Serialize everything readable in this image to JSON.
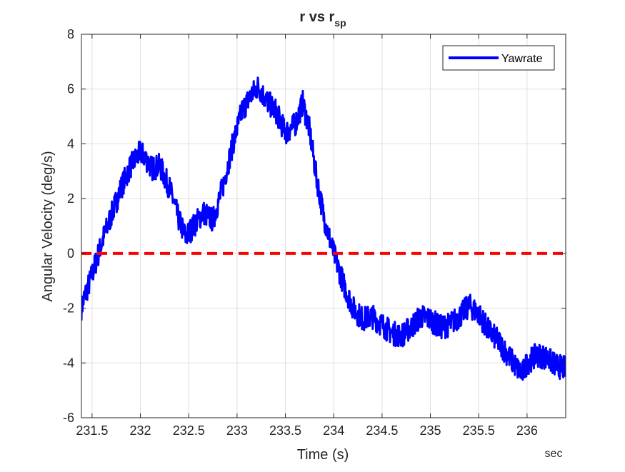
{
  "chart_data": {
    "type": "line",
    "title": {
      "main": "r vs r",
      "subscript": "sp"
    },
    "xlabel": "Time (s)",
    "ylabel": "Angular Velocity (deg/s)",
    "x_unit_label": "sec",
    "xlim": [
      231.39,
      236.4
    ],
    "ylim": [
      -6,
      8
    ],
    "xticks": [
      231.5,
      232,
      232.5,
      233,
      233.5,
      234,
      234.5,
      235,
      235.5,
      236
    ],
    "xtick_labels": [
      "231.5",
      "232",
      "232.5",
      "233",
      "233.5",
      "234",
      "234.5",
      "235",
      "235.5",
      "236"
    ],
    "yticks": [
      -6,
      -4,
      -2,
      0,
      2,
      4,
      6,
      8
    ],
    "ytick_labels": [
      "-6",
      "-4",
      "-2",
      "0",
      "2",
      "4",
      "6",
      "8"
    ],
    "grid": true,
    "legend": {
      "position": "top-right",
      "entries": [
        "Yawrate"
      ]
    },
    "series": [
      {
        "name": "Yawrate",
        "color": "#0000ff",
        "style": "solid",
        "noise_amplitude": 0.45,
        "x": [
          231.39,
          231.42,
          231.48,
          231.55,
          231.62,
          231.7,
          231.8,
          231.9,
          232.0,
          232.05,
          232.12,
          232.2,
          232.3,
          232.4,
          232.47,
          232.55,
          232.65,
          232.75,
          232.85,
          232.95,
          233.05,
          233.15,
          233.22,
          233.3,
          233.4,
          233.5,
          233.6,
          233.68,
          233.75,
          233.82,
          233.9,
          234.0,
          234.1,
          234.2,
          234.3,
          234.4,
          234.5,
          234.6,
          234.7,
          234.8,
          234.9,
          235.0,
          235.1,
          235.2,
          235.3,
          235.4,
          235.5,
          235.6,
          235.7,
          235.8,
          235.9,
          235.95,
          236.0,
          236.1,
          236.2,
          236.3,
          236.4
        ],
        "y": [
          -2.0,
          -1.6,
          -1.0,
          -0.2,
          0.6,
          1.4,
          2.4,
          3.2,
          3.7,
          3.5,
          3.1,
          3.2,
          2.4,
          1.2,
          0.6,
          1.0,
          1.5,
          1.2,
          2.4,
          3.9,
          5.2,
          5.8,
          6.1,
          5.6,
          5.2,
          4.4,
          4.7,
          5.5,
          4.5,
          2.8,
          1.3,
          0.0,
          -1.1,
          -2.0,
          -2.4,
          -2.3,
          -2.6,
          -2.9,
          -3.0,
          -2.7,
          -2.3,
          -2.4,
          -2.7,
          -2.6,
          -2.3,
          -1.9,
          -2.2,
          -2.8,
          -3.2,
          -3.7,
          -4.2,
          -4.4,
          -4.0,
          -3.7,
          -3.8,
          -4.1,
          -4.2
        ]
      },
      {
        "name": "",
        "color": "#ff0000",
        "style": "dashed",
        "x": [
          231.39,
          236.4
        ],
        "y": [
          0,
          0
        ]
      }
    ]
  }
}
